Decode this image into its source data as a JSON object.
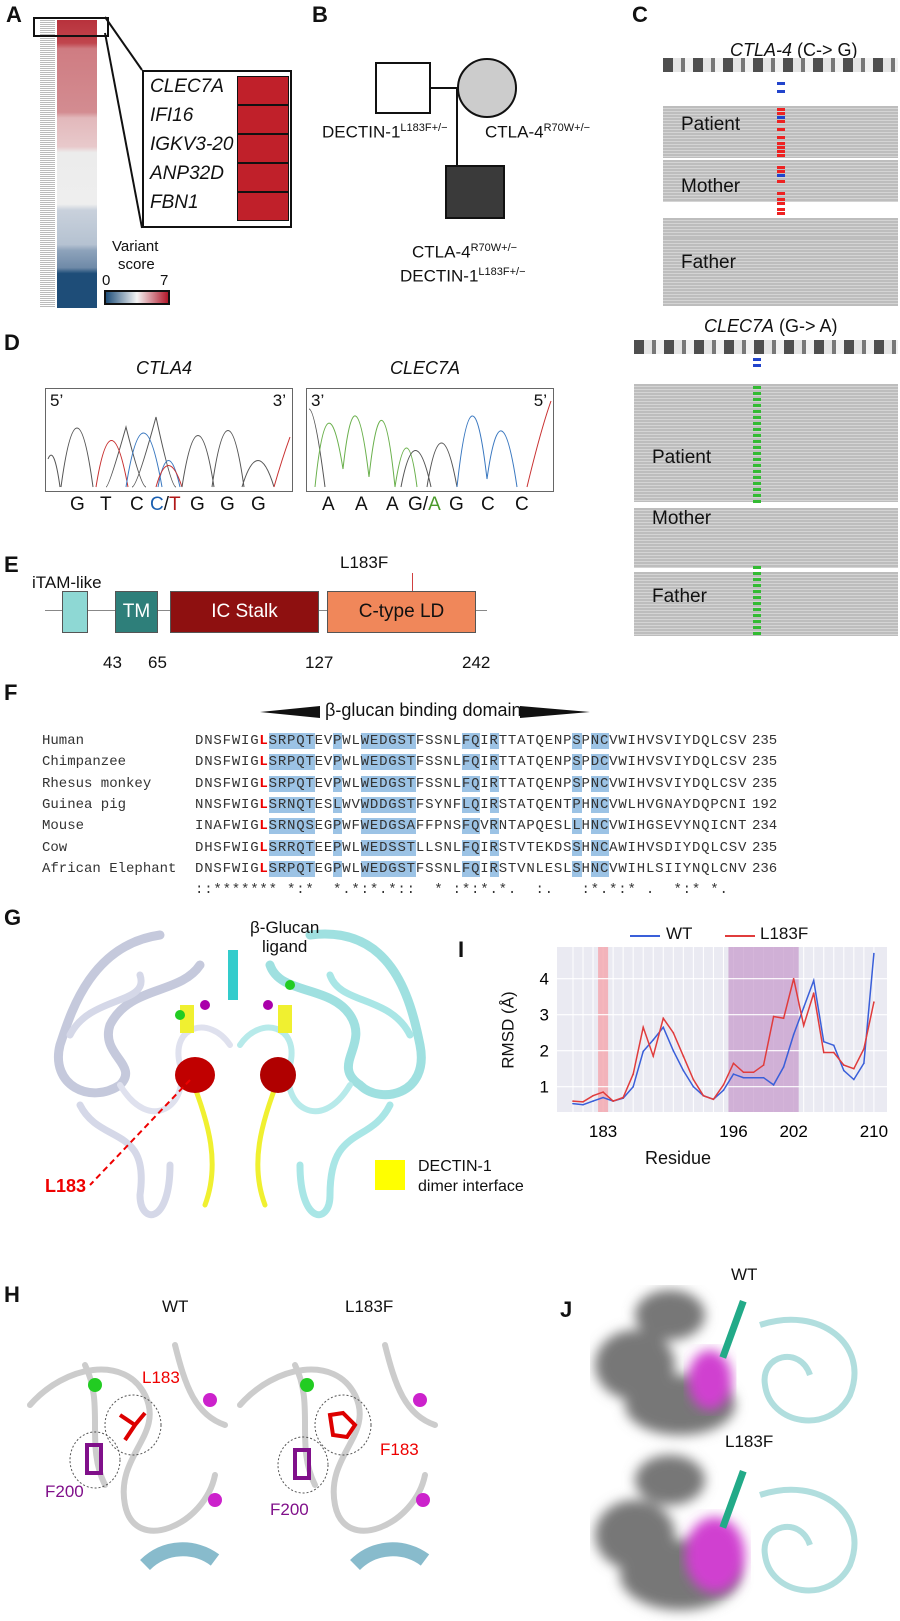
{
  "panels": {
    "A": "A",
    "B": "B",
    "C": "C",
    "D": "D",
    "E": "E",
    "F": "F",
    "G": "G",
    "H": "H",
    "I": "I",
    "J": "J"
  },
  "panel_a": {
    "genes": [
      "CLEC7A",
      "IFI16",
      "IGKV3-20",
      "ANP32D",
      "FBN1"
    ],
    "legend_title_1": "Variant",
    "legend_title_2": "score",
    "legend_min": "0",
    "legend_max": "7",
    "colors": {
      "low": "#1f4e79",
      "mid": "#f4f4f4",
      "high": "#b2182b"
    }
  },
  "panel_b": {
    "father_gene": "DECTIN-1",
    "father_sup": "L183F+/−",
    "mother_gene": "CTLA-4",
    "mother_sup": "R70W+/−",
    "child_gene_1": "CTLA-4",
    "child_sup_1": "R70W+/−",
    "child_gene_2": "DECTIN-1",
    "child_sup_2": "L183F+/−"
  },
  "panel_c": {
    "top_title_gene": "CTLA-4",
    "top_title_change": " (C-> G)",
    "bottom_title_gene": "CLEC7A",
    "bottom_title_change": " (G-> A)",
    "samples": [
      "Patient",
      "Mother",
      "Father"
    ]
  },
  "panel_d": {
    "left": {
      "title": "CTLA4",
      "end5": "5’",
      "end3": "3’",
      "bases": [
        "G",
        "T",
        "C"
      ],
      "het_a": "C",
      "het_sep": "/",
      "het_b": "T",
      "bases_after": [
        "G",
        "G",
        "G"
      ]
    },
    "right": {
      "title": "CLEC7A",
      "end3": "3’",
      "end5": "5’",
      "bases": [
        "A",
        "A",
        "A"
      ],
      "het_a": "G",
      "het_sep": "/",
      "het_b": "A",
      "bases_after": [
        "G",
        "C",
        "C"
      ]
    }
  },
  "panel_e": {
    "mutation": "L183F",
    "itam_label": "iTAM-like",
    "tm_label": "TM",
    "stalk_label": "IC Stalk",
    "ctld_label": "C-type LD",
    "positions": [
      "43",
      "65",
      "127",
      "242"
    ],
    "colors": {
      "itam": "#8ed8d4",
      "tm": "#2e7f7a",
      "stalk": "#8e1010",
      "ctld": "#f0875a"
    }
  },
  "panel_f": {
    "domain_label": "β-glucan binding domain",
    "rows": [
      {
        "species": "Human",
        "seq": "DNSFWIGLSRPQTEVPWLWEDGSTFSSNLFQIRTTATQENPSPNCVWIHVSVIYDQLCSV",
        "end": "235"
      },
      {
        "species": "Chimpanzee",
        "seq": "DNSFWIGLSRPQTEVPWLWEDGSTFSSNLFQIRTTATQENPSPDCVWIHVSVIYDQLCSV",
        "end": "235"
      },
      {
        "species": "Rhesus monkey",
        "seq": "DNSFWIGLSRPQTEVPWLWEDGSTFSSNLFQIRTTATQENPSPNCVWIHVSVIYDQLCSV",
        "end": "235"
      },
      {
        "species": "Guinea pig",
        "seq": "NNSFWIGLSRNQTESLWVWDDGSTFSYNFLQIRSTATQENTPHNCVWLHVGNAYDQPCNI",
        "end": "192"
      },
      {
        "species": "Mouse",
        "seq": "INAFWIGLSRNQSEGPWFWEDGSAFFPNSFQVRNTAPQESLLHNCVWIHGSEVYNQICNT",
        "end": "234"
      },
      {
        "species": "Cow",
        "seq": "DHSFWIGLSRRQTEEPWLWEDSSTLLSNLFQIRSTVTEKDSSHNCAWIHVSDIYDQLCSV",
        "end": "235"
      },
      {
        "species": "African Elephant",
        "seq": "DNSFWIGLSRPQTEGPWLWEDGSTFSSNLFQIRSTVNLESLSHNCVWIHLSIIYNQLCNV",
        "end": "236"
      }
    ],
    "consensus": "::******* *:*  *.*:*.*::  * :*:*.*.  :.   :*.*:* .  *:* *.",
    "highlight_color": "#9cc3e5",
    "mutation_color": "#e00000"
  },
  "panel_g": {
    "ligand_label_1": "β-Glucan",
    "ligand_label_2": "ligand",
    "residue_label": "L183",
    "legend_label_1": "DECTIN-1",
    "legend_label_2": "dimer interface",
    "legend_color": "#ffff00"
  },
  "panel_h": {
    "wt_title": "WT",
    "mut_title": "L183F",
    "wt_res_label": "L183",
    "wt_f200_label": "F200",
    "mut_res_label": "F183",
    "mut_f200_label": "F200"
  },
  "panel_j": {
    "wt_title": "WT",
    "mut_title": "L183F"
  },
  "chart_data": {
    "type": "line",
    "xlabel": "Residue",
    "ylabel": "RMSD (Å)",
    "x": [
      180,
      181,
      182,
      183,
      184,
      185,
      186,
      187,
      188,
      189,
      190,
      191,
      192,
      193,
      194,
      195,
      196,
      197,
      198,
      199,
      200,
      201,
      202,
      203,
      204,
      205,
      206,
      207,
      208,
      209,
      210
    ],
    "xticks": [
      183,
      196,
      202,
      210
    ],
    "yticks": [
      1,
      2,
      3,
      4
    ],
    "xlim": [
      179.5,
      211.3
    ],
    "ylim": [
      0.3,
      4.9
    ],
    "grid": true,
    "legend_position": "top",
    "highlight_regions": [
      {
        "from": 182.5,
        "to": 183.5,
        "color": "#f4a0a8"
      },
      {
        "from": 195.5,
        "to": 202.5,
        "color": "#c79ccc"
      }
    ],
    "series": [
      {
        "name": "WT",
        "color": "#3a5fd9",
        "values": [
          0.53,
          0.5,
          0.6,
          0.7,
          0.6,
          0.68,
          1.0,
          1.98,
          2.3,
          2.65,
          2.0,
          1.45,
          1.0,
          0.75,
          0.65,
          0.9,
          1.35,
          1.25,
          1.25,
          1.25,
          1.05,
          1.55,
          2.45,
          3.2,
          3.95,
          2.25,
          2.15,
          1.45,
          1.2,
          1.65,
          4.7
        ]
      },
      {
        "name": "L183F",
        "color": "#e03c3c",
        "values": [
          0.6,
          0.58,
          0.75,
          0.85,
          0.6,
          0.7,
          1.35,
          2.65,
          1.85,
          2.9,
          2.5,
          1.85,
          1.2,
          0.75,
          0.65,
          1.05,
          1.65,
          1.4,
          1.4,
          1.6,
          2.95,
          2.9,
          4.0,
          2.7,
          3.6,
          1.95,
          1.95,
          1.6,
          1.5,
          2.05,
          3.35
        ]
      }
    ]
  }
}
